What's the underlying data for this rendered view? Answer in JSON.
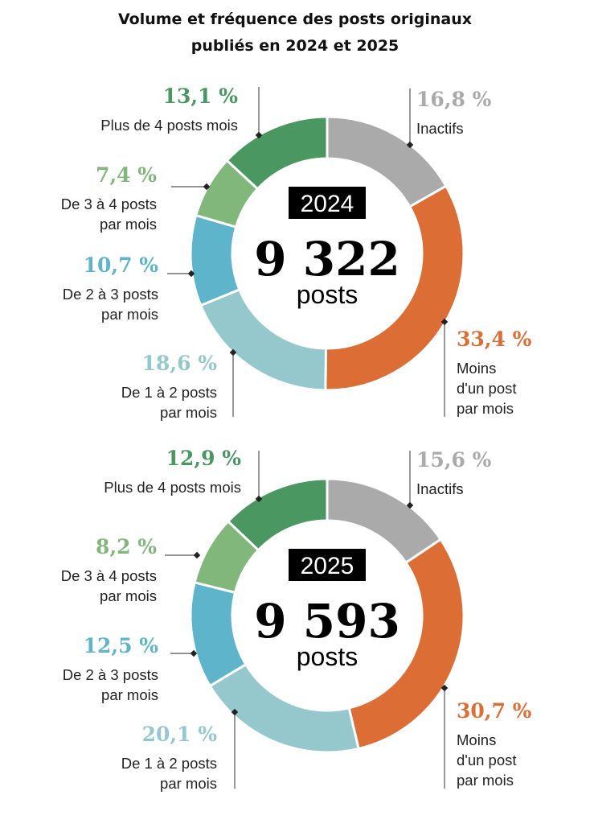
{
  "chart_data": {
    "type": "pie",
    "title": [
      "Volume et fréquence des posts originaux",
      "publiés en 2024 et 2025"
    ],
    "categories": [
      "Inactifs",
      "Moins d'un post par mois",
      "De 1 à 2 posts par mois",
      "De 2 à 3 posts par mois",
      "De 3 à 4 posts par mois",
      "Plus de 4 posts mois"
    ],
    "category_lines": [
      [
        "Inactifs"
      ],
      [
        "Moins",
        "d'un post",
        "par mois"
      ],
      [
        "De 1 à 2 posts",
        "par mois"
      ],
      [
        "De 2 à 3 posts",
        "par mois"
      ],
      [
        "De 3 à 4 posts",
        "par mois"
      ],
      [
        "Plus de 4 posts mois"
      ]
    ],
    "colors": [
      "#aaaaaa",
      "#dc6e35",
      "#95c8cd",
      "#5db4cb",
      "#82b77b",
      "#4a9762"
    ],
    "series": [
      {
        "name": "2024",
        "total": "9 322",
        "unit": "posts",
        "values": [
          16.8,
          33.4,
          18.6,
          10.7,
          7.4,
          13.1
        ],
        "labels": [
          "16,8 %",
          "33,4 %",
          "18,6 %",
          "10,7 %",
          "7,4 %",
          "13,1 %"
        ]
      },
      {
        "name": "2025",
        "total": "9 593",
        "unit": "posts",
        "values": [
          15.6,
          30.7,
          20.1,
          12.5,
          8.2,
          12.9
        ],
        "labels": [
          "15,6 %",
          "30,7 %",
          "20,1 %",
          "12,5 %",
          "8,2 %",
          "12,9 %"
        ]
      }
    ]
  }
}
